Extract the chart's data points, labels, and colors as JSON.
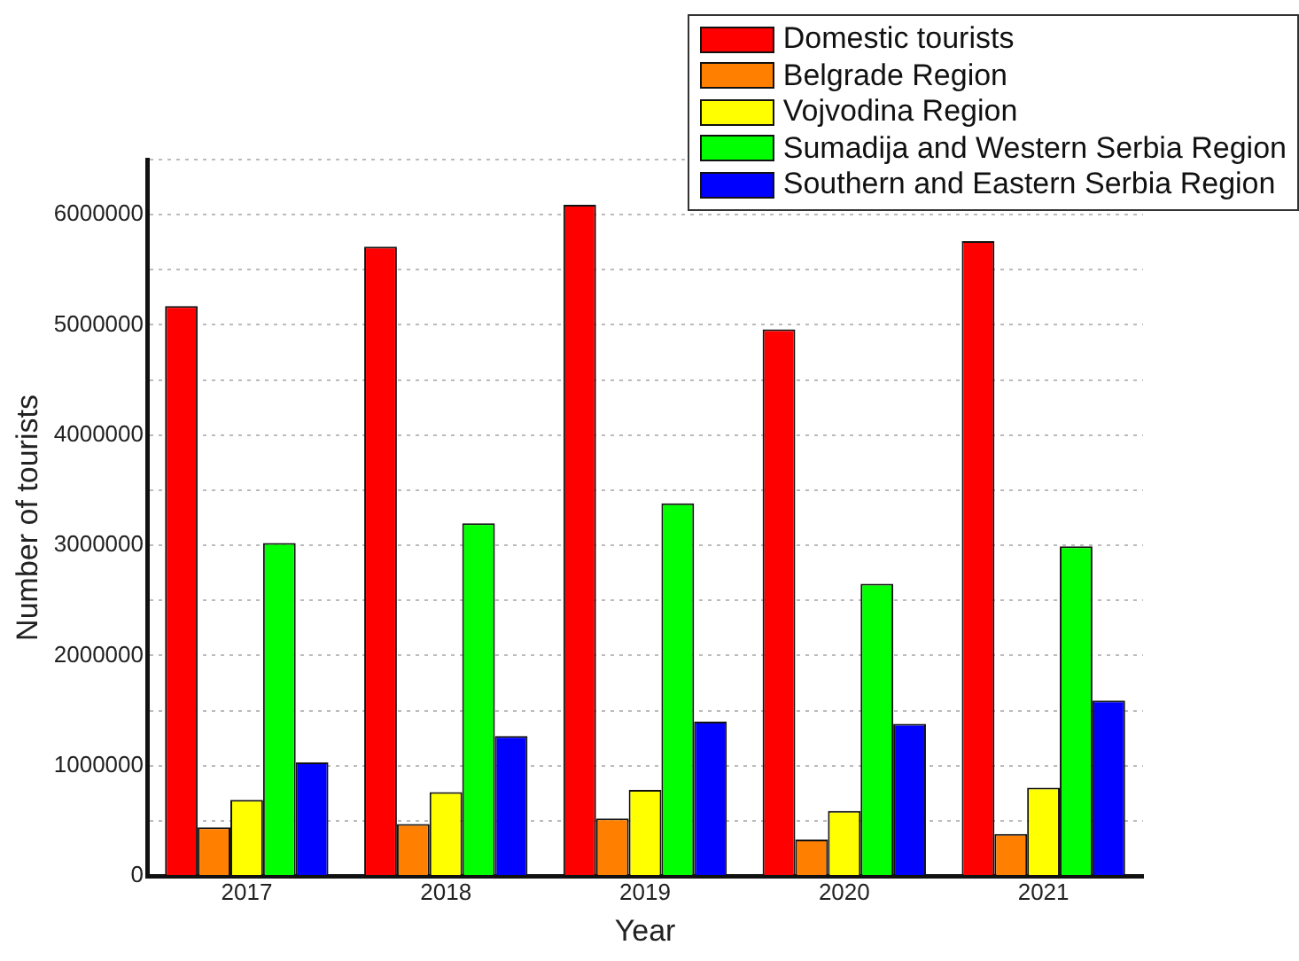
{
  "chart_data": {
    "type": "bar",
    "xlabel": "Year",
    "ylabel": "Number of tourists",
    "categories": [
      "2017",
      "2018",
      "2019",
      "2020",
      "2021"
    ],
    "series": [
      {
        "name": "Domestic tourists",
        "color": "#ff0000",
        "values": [
          5170000,
          5710000,
          6090000,
          4960000,
          5760000
        ]
      },
      {
        "name": "Belgrade Region",
        "color": "#ff8000",
        "values": [
          440000,
          470000,
          520000,
          330000,
          380000
        ]
      },
      {
        "name": "Vojvodina Region",
        "color": "#ffff00",
        "values": [
          690000,
          760000,
          780000,
          590000,
          800000
        ]
      },
      {
        "name": "Sumadija and Western Serbia Region",
        "color": "#00ff00",
        "values": [
          3020000,
          3200000,
          3380000,
          2650000,
          2990000
        ]
      },
      {
        "name": "Southern and Eastern Serbia Region",
        "color": "#0000ff",
        "values": [
          1030000,
          1270000,
          1400000,
          1380000,
          1590000
        ]
      }
    ],
    "ylim": [
      0,
      6500000
    ],
    "yticks": [
      0,
      {
        "value": 500000,
        "label": null
      },
      1000000,
      {
        "value": 1500000,
        "label": null
      },
      2000000,
      {
        "value": 2500000,
        "label": null
      },
      3000000,
      {
        "value": 3500000,
        "label": null
      },
      4000000,
      {
        "value": 4500000,
        "label": null
      },
      5000000,
      {
        "value": 5500000,
        "label": null
      },
      6000000,
      {
        "value": 6500000,
        "label": null
      }
    ],
    "grid": "y",
    "legend": "top right"
  }
}
